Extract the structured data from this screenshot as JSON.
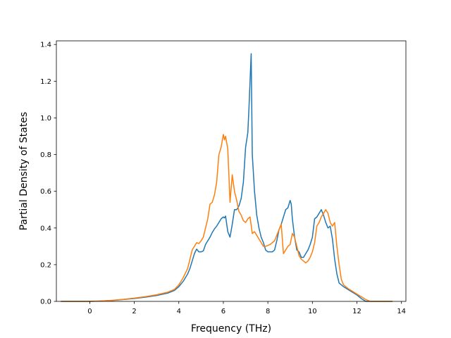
{
  "chart_data": {
    "type": "line",
    "title": "",
    "xlabel": "Frequency (THz)",
    "ylabel": "Partial Density of States",
    "xlim": [
      -1.5,
      14.2
    ],
    "ylim": [
      0.0,
      1.42
    ],
    "xticks": [
      0,
      2,
      4,
      6,
      8,
      10,
      12,
      14
    ],
    "yticks": [
      0.0,
      0.2,
      0.4,
      0.6,
      0.8,
      1.0,
      1.2,
      1.4
    ],
    "xtick_labels": [
      "0",
      "2",
      "4",
      "6",
      "8",
      "10",
      "12",
      "14"
    ],
    "ytick_labels": [
      "0.0",
      "0.2",
      "0.4",
      "0.6",
      "0.8",
      "1.0",
      "1.2",
      "1.4"
    ],
    "grid": false,
    "legend": "none",
    "series": [
      {
        "color": "#1f77b4",
        "x": [
          -1.3,
          0.0,
          0.5,
          1.0,
          1.5,
          2.0,
          2.5,
          3.0,
          3.5,
          3.8,
          4.0,
          4.2,
          4.4,
          4.5,
          4.6,
          4.7,
          4.8,
          4.9,
          5.0,
          5.1,
          5.2,
          5.3,
          5.4,
          5.5,
          5.6,
          5.7,
          5.8,
          5.9,
          6.0,
          6.05,
          6.1,
          6.2,
          6.3,
          6.4,
          6.5,
          6.6,
          6.7,
          6.8,
          6.9,
          7.0,
          7.05,
          7.1,
          7.15,
          7.2,
          7.25,
          7.3,
          7.4,
          7.5,
          7.6,
          7.7,
          7.8,
          7.9,
          8.0,
          8.1,
          8.2,
          8.3,
          8.4,
          8.5,
          8.6,
          8.7,
          8.8,
          8.9,
          9.0,
          9.05,
          9.1,
          9.2,
          9.3,
          9.4,
          9.5,
          9.6,
          9.7,
          9.8,
          9.9,
          10.0,
          10.1,
          10.2,
          10.3,
          10.4,
          10.5,
          10.6,
          10.7,
          10.8,
          10.9,
          11.0,
          11.1,
          11.2,
          11.3,
          11.4,
          11.6,
          11.8,
          12.0,
          12.2,
          12.4,
          12.6,
          13.0,
          13.6
        ],
        "y": [
          0.0,
          0.0,
          0.002,
          0.005,
          0.01,
          0.016,
          0.023,
          0.032,
          0.045,
          0.06,
          0.08,
          0.11,
          0.15,
          0.18,
          0.22,
          0.26,
          0.285,
          0.27,
          0.27,
          0.275,
          0.31,
          0.33,
          0.35,
          0.375,
          0.395,
          0.41,
          0.43,
          0.45,
          0.46,
          0.455,
          0.465,
          0.38,
          0.35,
          0.42,
          0.5,
          0.5,
          0.52,
          0.56,
          0.65,
          0.84,
          0.88,
          0.92,
          1.05,
          1.2,
          1.35,
          0.8,
          0.6,
          0.47,
          0.4,
          0.35,
          0.32,
          0.28,
          0.27,
          0.27,
          0.27,
          0.28,
          0.33,
          0.39,
          0.42,
          0.46,
          0.5,
          0.51,
          0.55,
          0.53,
          0.45,
          0.35,
          0.28,
          0.27,
          0.24,
          0.24,
          0.26,
          0.28,
          0.31,
          0.35,
          0.45,
          0.46,
          0.48,
          0.5,
          0.47,
          0.43,
          0.4,
          0.41,
          0.34,
          0.23,
          0.15,
          0.1,
          0.09,
          0.08,
          0.065,
          0.05,
          0.035,
          0.015,
          0.0,
          0.0,
          0.0,
          0.0
        ]
      },
      {
        "color": "#ff7f0e",
        "x": [
          -1.3,
          0.0,
          0.5,
          1.0,
          1.5,
          2.0,
          2.5,
          3.0,
          3.5,
          3.8,
          4.0,
          4.2,
          4.4,
          4.5,
          4.6,
          4.7,
          4.8,
          4.9,
          5.0,
          5.1,
          5.2,
          5.3,
          5.4,
          5.5,
          5.6,
          5.7,
          5.8,
          5.9,
          6.0,
          6.05,
          6.1,
          6.2,
          6.3,
          6.4,
          6.5,
          6.6,
          6.7,
          6.8,
          6.9,
          7.0,
          7.1,
          7.2,
          7.3,
          7.4,
          7.5,
          7.6,
          7.7,
          7.8,
          7.9,
          8.0,
          8.1,
          8.2,
          8.3,
          8.4,
          8.5,
          8.6,
          8.7,
          8.8,
          8.9,
          9.0,
          9.05,
          9.1,
          9.2,
          9.3,
          9.4,
          9.5,
          9.6,
          9.7,
          9.8,
          9.9,
          10.0,
          10.1,
          10.2,
          10.3,
          10.4,
          10.5,
          10.6,
          10.7,
          10.8,
          10.9,
          11.0,
          11.1,
          11.2,
          11.3,
          11.4,
          11.6,
          11.8,
          12.0,
          12.2,
          12.4,
          12.6,
          13.0,
          13.6
        ],
        "y": [
          0.0,
          0.0,
          0.002,
          0.006,
          0.011,
          0.018,
          0.026,
          0.036,
          0.05,
          0.065,
          0.09,
          0.13,
          0.18,
          0.23,
          0.28,
          0.3,
          0.32,
          0.315,
          0.33,
          0.35,
          0.4,
          0.45,
          0.53,
          0.54,
          0.58,
          0.65,
          0.8,
          0.84,
          0.91,
          0.88,
          0.9,
          0.83,
          0.54,
          0.69,
          0.6,
          0.55,
          0.49,
          0.47,
          0.44,
          0.43,
          0.45,
          0.46,
          0.37,
          0.38,
          0.36,
          0.34,
          0.32,
          0.3,
          0.3,
          0.305,
          0.31,
          0.32,
          0.33,
          0.36,
          0.39,
          0.42,
          0.26,
          0.28,
          0.3,
          0.31,
          0.34,
          0.37,
          0.35,
          0.3,
          0.25,
          0.23,
          0.22,
          0.21,
          0.22,
          0.24,
          0.27,
          0.32,
          0.41,
          0.43,
          0.46,
          0.48,
          0.5,
          0.48,
          0.43,
          0.41,
          0.43,
          0.3,
          0.2,
          0.12,
          0.09,
          0.07,
          0.055,
          0.04,
          0.025,
          0.01,
          0.0,
          0.0,
          0.0
        ]
      }
    ]
  }
}
